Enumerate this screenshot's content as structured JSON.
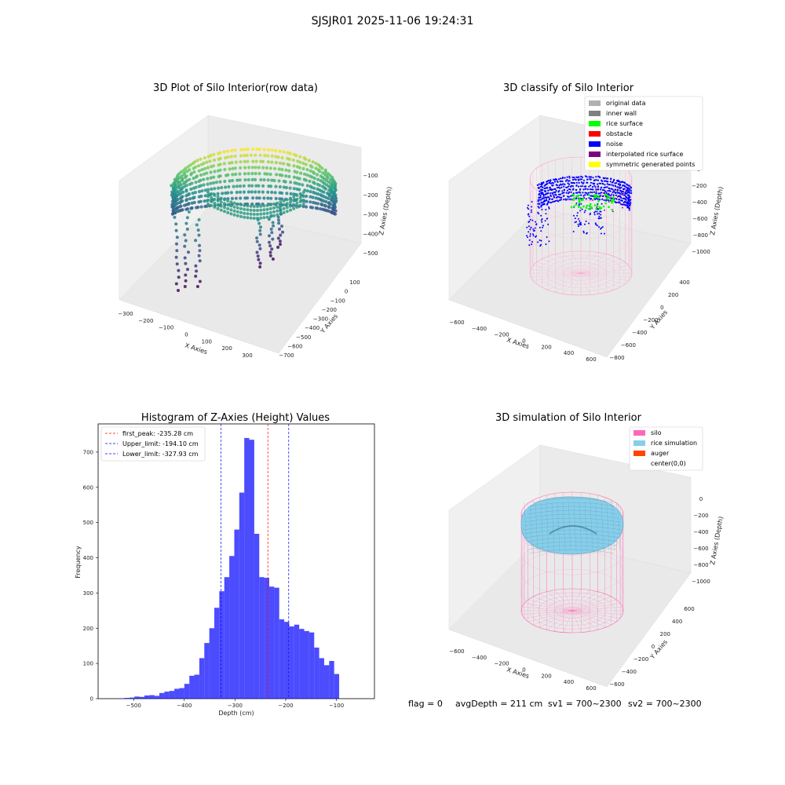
{
  "figure": {
    "suptitle": "SJSJR01 2025-11-06 19:24:31",
    "footer": {
      "flag": "flag = 0",
      "avg": "avgDepth = 211 cm",
      "sv1": "sv1 = 700~2300",
      "sv2": "sv2 = 700~2300"
    }
  },
  "panels": {
    "raw": {
      "title": "3D Plot of Silo Interior(row data)",
      "xlabel": "X Axies",
      "ylabel": "Y Axies",
      "zlabel": "Z Axies (Depth)",
      "xticks": [
        "−300",
        "−200",
        "−100",
        "0",
        "100",
        "200",
        "300"
      ],
      "yticks": [
        "100",
        "0",
        "−100",
        "−200",
        "−300",
        "−400",
        "−500",
        "−600",
        "−700"
      ],
      "zticks": [
        "−100",
        "−200",
        "−300",
        "−400",
        "−500"
      ]
    },
    "classify": {
      "title": "3D classify of Silo Interior",
      "xlabel": "X Axies",
      "ylabel": "Y Axies",
      "zlabel": "Z Axies (Depth)",
      "xticks": [
        "−600",
        "−400",
        "−200",
        "0",
        "200",
        "400",
        "600"
      ],
      "yticks": [
        "400",
        "200",
        "0",
        "−200",
        "−400",
        "−600",
        "−800"
      ],
      "zticks": [
        "0",
        "−200",
        "−400",
        "−600",
        "−800",
        "−1000"
      ],
      "legend": [
        {
          "label": "original data",
          "color": "#b0b0b0"
        },
        {
          "label": "inner wall",
          "color": "#808080"
        },
        {
          "label": "rice surface",
          "color": "#00ff00"
        },
        {
          "label": "obstacle",
          "color": "#ff0000"
        },
        {
          "label": "noise",
          "color": "#0000ff"
        },
        {
          "label": "interpolated rice surface",
          "color": "#800080"
        },
        {
          "label": "symmetric generated points",
          "color": "#ffff00"
        }
      ]
    },
    "simulation": {
      "title": "3D simulation of Silo Interior",
      "xlabel": "X Axies",
      "ylabel": "Y Axies",
      "zlabel": "Z Axies (Depth)",
      "xticks": [
        "−600",
        "−400",
        "−200",
        "0",
        "200",
        "400",
        "600"
      ],
      "yticks": [
        "600",
        "400",
        "200",
        "0",
        "−200",
        "−400",
        "−600"
      ],
      "zticks": [
        "0",
        "−200",
        "−400",
        "−600",
        "−800",
        "−1000"
      ],
      "legend": [
        {
          "label": "silo",
          "color": "#ff69b4"
        },
        {
          "label": "rice simulation",
          "color": "#87ceeb"
        },
        {
          "label": "auger",
          "color": "#ff4500"
        },
        {
          "label": "center(0,0)",
          "color": "#ffffff"
        }
      ]
    }
  },
  "chart_data": {
    "type": "bar",
    "title": "Histogram of Z-Axies (Height) Values",
    "xlabel": "Depth (cm)",
    "ylabel": "Frequency",
    "xlim": [
      -570,
      -25
    ],
    "ylim": [
      0,
      780
    ],
    "xticks": [
      -500,
      -400,
      -300,
      -200,
      -100
    ],
    "yticks": [
      0,
      100,
      200,
      300,
      400,
      500,
      600,
      700
    ],
    "bar_color": "#0000ff",
    "bins": {
      "start": -528,
      "width": 9.85,
      "values": [
        1,
        2,
        3,
        6,
        5,
        9,
        10,
        8,
        16,
        20,
        22,
        28,
        30,
        42,
        65,
        68,
        115,
        158,
        200,
        258,
        305,
        345,
        405,
        480,
        585,
        740,
        735,
        468,
        345,
        343,
        318,
        315,
        225,
        218,
        205,
        210,
        198,
        192,
        188,
        145,
        115,
        95,
        107,
        70
      ]
    },
    "lines": [
      {
        "label": "first_peak: -235.28 cm",
        "x": -235.28,
        "color": "#ff0000"
      },
      {
        "label": "Upper_limit: -194.10 cm",
        "x": -194.1,
        "color": "#0000ff"
      },
      {
        "label": "Lower_limit: -327.93 cm",
        "x": -327.93,
        "color": "#0000ff"
      }
    ],
    "legend_position": "upper left"
  }
}
